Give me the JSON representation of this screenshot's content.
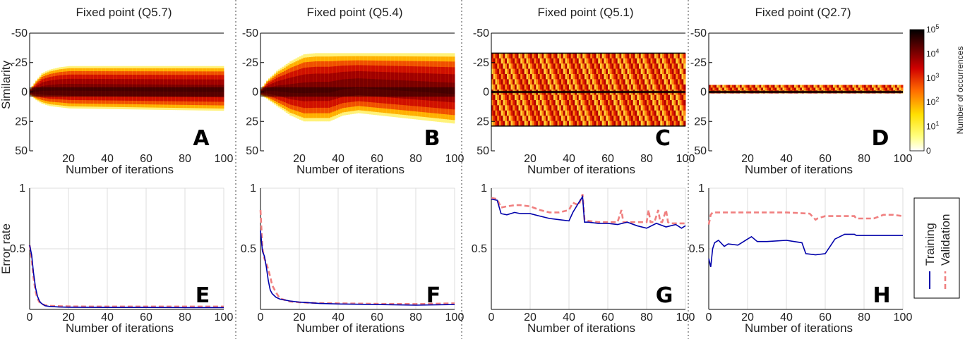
{
  "chart_data": [
    {
      "type": "heatmap",
      "panel": "A",
      "title": "Fixed point (Q5.7)",
      "xlabel": "Number of iterations",
      "ylabel": "Similarity",
      "xlim": [
        0,
        100
      ],
      "ylim": [
        -50,
        50
      ],
      "xticks": [
        "20",
        "40",
        "60",
        "80",
        "100"
      ],
      "yticks": [
        "-50",
        "-25",
        "0",
        "25",
        "50"
      ],
      "band_upper": [
        [
          0,
          -3
        ],
        [
          3,
          -10
        ],
        [
          6,
          -16
        ],
        [
          10,
          -19
        ],
        [
          15,
          -21
        ],
        [
          20,
          -22
        ],
        [
          100,
          -22
        ]
      ],
      "band_lower": [
        [
          0,
          3
        ],
        [
          3,
          7
        ],
        [
          6,
          10
        ],
        [
          10,
          12
        ],
        [
          15,
          13
        ],
        [
          20,
          14
        ],
        [
          100,
          16
        ]
      ],
      "core_half_width": 4
    },
    {
      "type": "heatmap",
      "panel": "B",
      "title": "Fixed point (Q5.4)",
      "xlabel": "Number of iterations",
      "ylabel": "",
      "xlim": [
        0,
        100
      ],
      "ylim": [
        -50,
        50
      ],
      "xticks": [
        "20",
        "40",
        "60",
        "80",
        "100"
      ],
      "yticks": [
        "-50",
        "-25",
        "0",
        "25",
        "50"
      ],
      "band_upper": [
        [
          0,
          -3
        ],
        [
          3,
          -10
        ],
        [
          8,
          -18
        ],
        [
          15,
          -26
        ],
        [
          22,
          -32
        ],
        [
          28,
          -33
        ],
        [
          100,
          -33
        ]
      ],
      "band_lower": [
        [
          0,
          3
        ],
        [
          3,
          6
        ],
        [
          8,
          12
        ],
        [
          15,
          20
        ],
        [
          22,
          25
        ],
        [
          35,
          25
        ],
        [
          42,
          20
        ],
        [
          50,
          18
        ],
        [
          100,
          27
        ]
      ],
      "core_half_width": 4
    },
    {
      "type": "heatmap",
      "panel": "C",
      "title": "Fixed point (Q5.1)",
      "xlabel": "Number of iterations",
      "ylabel": "",
      "xlim": [
        0,
        100
      ],
      "ylim": [
        -50,
        50
      ],
      "xticks": [
        "20",
        "40",
        "60",
        "80",
        "100"
      ],
      "yticks": [
        "-50",
        "-25",
        "0",
        "25",
        "50"
      ],
      "band_upper": [
        [
          0,
          -33
        ],
        [
          100,
          -33
        ]
      ],
      "band_lower": [
        [
          0,
          29
        ],
        [
          100,
          29
        ]
      ],
      "core_half_width": 1
    },
    {
      "type": "heatmap",
      "panel": "D",
      "title": "Fixed point (Q2.7)",
      "xlabel": "Number of iterations",
      "ylabel": "",
      "xlim": [
        0,
        100
      ],
      "ylim": [
        -50,
        50
      ],
      "xticks": [
        "20",
        "40",
        "60",
        "80",
        "100"
      ],
      "yticks": [
        "-50",
        "-25",
        "0",
        "25",
        "50"
      ],
      "band_upper": [
        [
          0,
          -6
        ],
        [
          100,
          -6
        ]
      ],
      "band_lower": [
        [
          0,
          1
        ],
        [
          100,
          1
        ]
      ],
      "core_half_width": 1,
      "colorbar": {
        "label": "Number of occurrences",
        "scale": "log",
        "ticks": [
          "0",
          "10^1",
          "10^2",
          "10^3",
          "10^4",
          "10^5"
        ]
      }
    },
    {
      "type": "line",
      "panel": "E",
      "xlabel": "Number of iterations",
      "ylabel": "Error rate",
      "xlim": [
        0,
        100
      ],
      "ylim": [
        0,
        1
      ],
      "xticks": [
        "0",
        "20",
        "40",
        "60",
        "80",
        "100"
      ],
      "yticks": [
        "0.5",
        "1"
      ],
      "grid": true,
      "series": [
        {
          "name": "Training",
          "style": "solid",
          "color": "#0000aa",
          "x": [
            0,
            1,
            2,
            3,
            4,
            5,
            6,
            8,
            10,
            15,
            20,
            30,
            40,
            60,
            80,
            100
          ],
          "y": [
            0.53,
            0.45,
            0.3,
            0.18,
            0.11,
            0.07,
            0.05,
            0.03,
            0.025,
            0.02,
            0.018,
            0.017,
            0.016,
            0.016,
            0.015,
            0.015
          ]
        },
        {
          "name": "Validation",
          "style": "dashed",
          "color": "#f08080",
          "x": [
            0,
            1,
            2,
            3,
            4,
            5,
            6,
            8,
            10,
            15,
            20,
            30,
            40,
            60,
            80,
            100
          ],
          "y": [
            0.53,
            0.42,
            0.26,
            0.15,
            0.09,
            0.06,
            0.045,
            0.035,
            0.03,
            0.027,
            0.025,
            0.024,
            0.024,
            0.024,
            0.024,
            0.024
          ]
        }
      ]
    },
    {
      "type": "line",
      "panel": "F",
      "xlabel": "Number of iterations",
      "ylabel": "",
      "xlim": [
        0,
        100
      ],
      "ylim": [
        0,
        1
      ],
      "xticks": [
        "0",
        "20",
        "40",
        "60",
        "80",
        "100"
      ],
      "yticks": [
        "0.5",
        "1"
      ],
      "grid": true,
      "series": [
        {
          "name": "Training",
          "style": "solid",
          "color": "#0000aa",
          "x": [
            0,
            1,
            2,
            3,
            4,
            5,
            6,
            8,
            10,
            15,
            20,
            30,
            40,
            60,
            80,
            100
          ],
          "y": [
            0.65,
            0.48,
            0.44,
            0.35,
            0.24,
            0.16,
            0.13,
            0.1,
            0.085,
            0.07,
            0.06,
            0.05,
            0.045,
            0.04,
            0.035,
            0.04
          ]
        },
        {
          "name": "Validation",
          "style": "dashed",
          "color": "#f08080",
          "x": [
            0,
            1,
            2,
            3,
            4,
            5,
            6,
            8,
            10,
            15,
            20,
            30,
            40,
            60,
            80,
            100
          ],
          "y": [
            0.82,
            0.5,
            0.42,
            0.38,
            0.33,
            0.27,
            0.2,
            0.14,
            0.09,
            0.065,
            0.058,
            0.052,
            0.05,
            0.046,
            0.044,
            0.05
          ]
        }
      ]
    },
    {
      "type": "line",
      "panel": "G",
      "xlabel": "Number of iterations",
      "ylabel": "",
      "xlim": [
        0,
        100
      ],
      "ylim": [
        0,
        1
      ],
      "xticks": [
        "0",
        "20",
        "40",
        "60",
        "80",
        "100"
      ],
      "yticks": [
        "0.5",
        "1"
      ],
      "grid": true,
      "series": [
        {
          "name": "Training",
          "style": "solid",
          "color": "#0000aa",
          "x": [
            0,
            3,
            5,
            8,
            12,
            15,
            20,
            25,
            30,
            35,
            40,
            42,
            45,
            47,
            48,
            50,
            55,
            60,
            65,
            70,
            75,
            80,
            85,
            90,
            95,
            98,
            100
          ],
          "y": [
            0.91,
            0.9,
            0.79,
            0.78,
            0.8,
            0.79,
            0.79,
            0.77,
            0.75,
            0.74,
            0.73,
            0.8,
            0.88,
            0.93,
            0.72,
            0.72,
            0.71,
            0.71,
            0.7,
            0.72,
            0.69,
            0.67,
            0.71,
            0.68,
            0.7,
            0.67,
            0.69
          ]
        },
        {
          "name": "Validation",
          "style": "dashed",
          "color": "#f08080",
          "x": [
            0,
            3,
            5,
            8,
            12,
            15,
            20,
            25,
            30,
            35,
            40,
            42,
            45,
            47,
            48,
            50,
            55,
            60,
            65,
            67,
            68,
            70,
            75,
            80,
            81,
            82,
            84,
            86,
            87,
            88,
            90,
            91,
            92,
            95,
            100
          ],
          "y": [
            0.92,
            0.91,
            0.84,
            0.85,
            0.86,
            0.86,
            0.85,
            0.82,
            0.8,
            0.8,
            0.82,
            0.88,
            0.86,
            0.95,
            0.74,
            0.73,
            0.72,
            0.72,
            0.72,
            0.82,
            0.72,
            0.72,
            0.72,
            0.72,
            0.82,
            0.72,
            0.72,
            0.82,
            0.72,
            0.72,
            0.82,
            0.72,
            0.71,
            0.71,
            0.71
          ]
        }
      ]
    },
    {
      "type": "line",
      "panel": "H",
      "xlabel": "Number of iterations",
      "ylabel": "",
      "xlim": [
        0,
        100
      ],
      "ylim": [
        0,
        1
      ],
      "xticks": [
        "0",
        "20",
        "40",
        "60",
        "80",
        "100"
      ],
      "yticks": [
        "0.5",
        "1"
      ],
      "grid": true,
      "legend": {
        "position": "right",
        "entries": [
          "Training",
          "Validation"
        ]
      },
      "series": [
        {
          "name": "Training",
          "style": "solid",
          "color": "#0000aa",
          "x": [
            0,
            1,
            2,
            3,
            5,
            8,
            10,
            15,
            20,
            22,
            25,
            30,
            40,
            48,
            50,
            55,
            60,
            65,
            70,
            75,
            76,
            80,
            90,
            100
          ],
          "y": [
            0.42,
            0.35,
            0.5,
            0.55,
            0.57,
            0.52,
            0.54,
            0.53,
            0.58,
            0.6,
            0.56,
            0.56,
            0.57,
            0.55,
            0.46,
            0.45,
            0.46,
            0.58,
            0.62,
            0.62,
            0.61,
            0.61,
            0.61,
            0.61
          ]
        },
        {
          "name": "Validation",
          "style": "dashed",
          "color": "#f08080",
          "x": [
            0,
            1,
            2,
            5,
            20,
            40,
            52,
            55,
            56,
            60,
            75,
            76,
            85,
            90,
            95,
            100
          ],
          "y": [
            0.7,
            0.78,
            0.8,
            0.8,
            0.8,
            0.8,
            0.79,
            0.74,
            0.75,
            0.77,
            0.77,
            0.75,
            0.75,
            0.78,
            0.78,
            0.77
          ]
        }
      ]
    }
  ]
}
